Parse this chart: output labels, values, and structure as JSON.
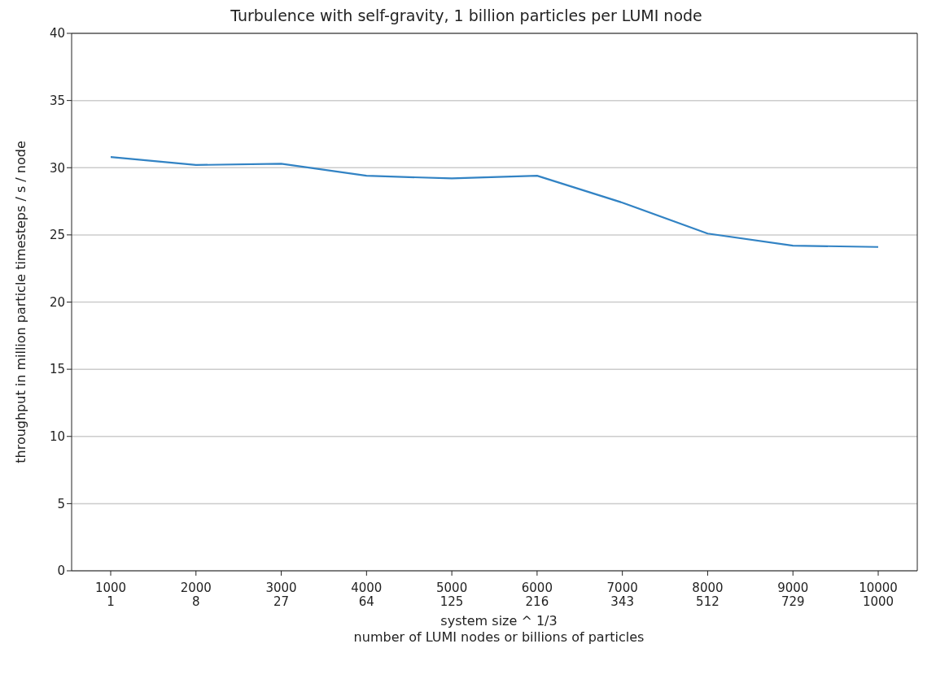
{
  "chart_data": {
    "type": "line",
    "title": "Turbulence with self-gravity, 1 billion particles per LUMI node",
    "xlabel": "system size ^ 1/3\nnumber of LUMI nodes or billions of particles",
    "ylabel": "throughput in million particle timesteps / s / node",
    "categories": [
      "1000\n1",
      "2000\n8",
      "3000\n27",
      "4000\n64",
      "5000\n125",
      "6000\n216",
      "7000\n343",
      "8000\n512",
      "9000\n729",
      "10000\n1000"
    ],
    "series": [
      {
        "color": "#3283c4",
        "values": [
          30.8,
          30.2,
          30.3,
          29.4,
          29.2,
          29.4,
          27.4,
          25.1,
          24.2,
          24.1
        ]
      }
    ],
    "ylim": [
      0,
      40
    ],
    "yticks": [
      0,
      5,
      10,
      15,
      20,
      25,
      30,
      35,
      40
    ],
    "grid": "y",
    "legend": false,
    "marker": "none",
    "line_style": "solid"
  }
}
